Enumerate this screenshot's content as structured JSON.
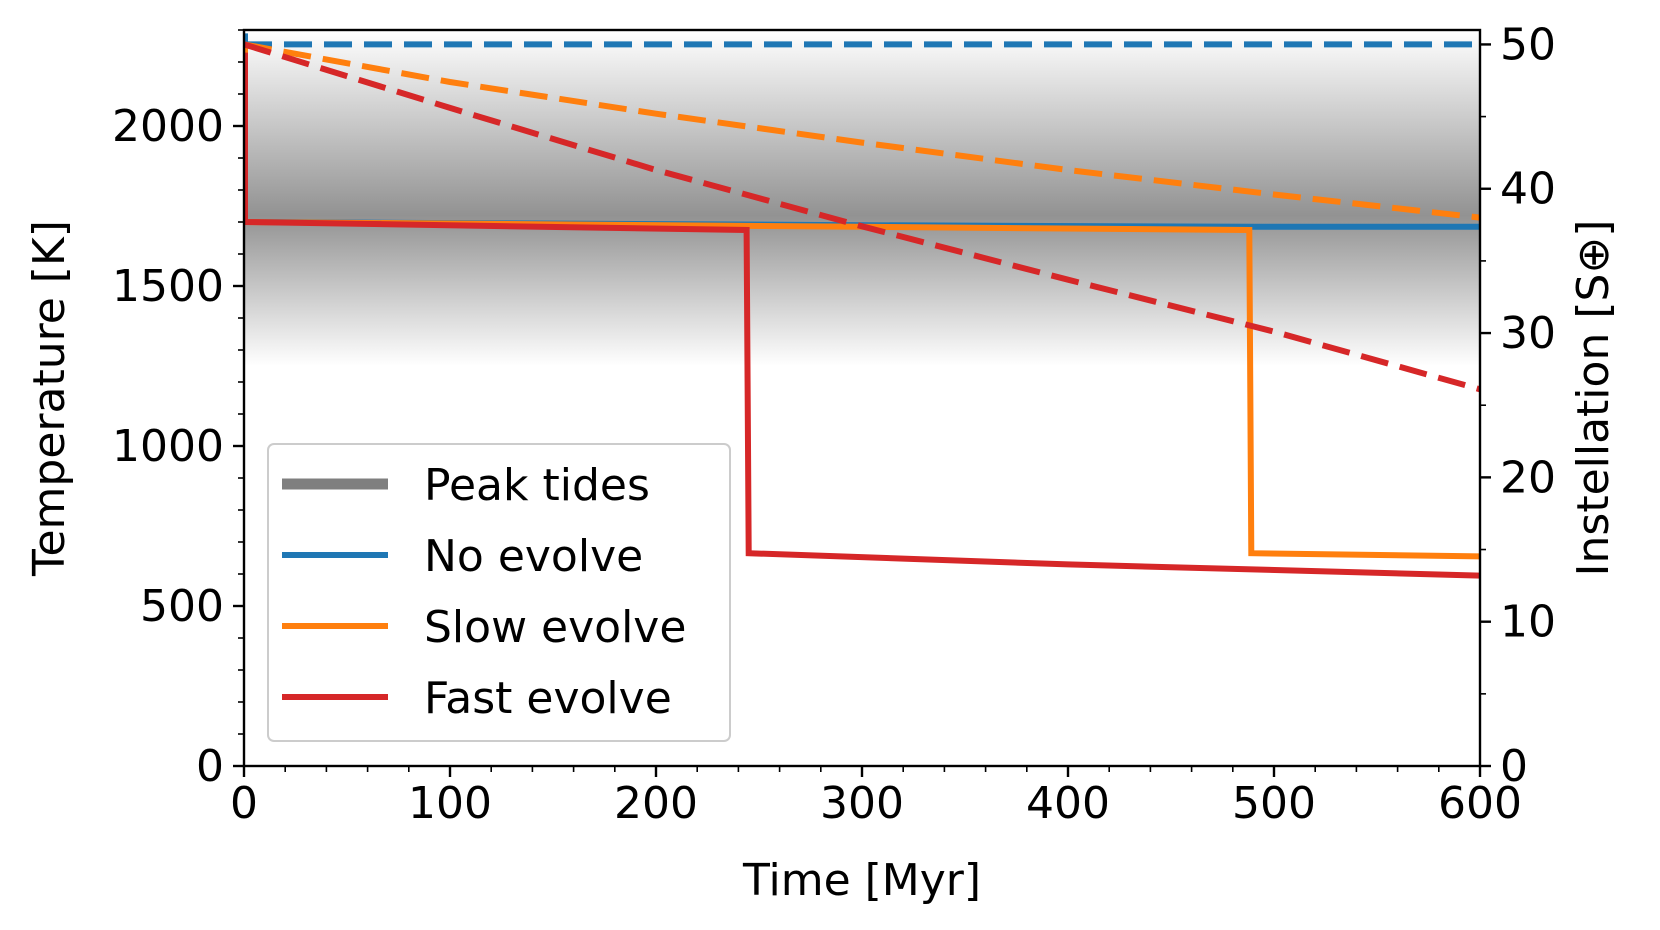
{
  "chart_data": {
    "type": "line",
    "xlabel": "Time [Myr]",
    "ylabel": "Temperature [K]",
    "y2label": "Instellation [S⊕]",
    "xlim": [
      0,
      600
    ],
    "ylim": [
      0,
      2300
    ],
    "y2lim": [
      0,
      51
    ],
    "xticks": [
      0,
      100,
      200,
      300,
      400,
      500,
      600
    ],
    "yticks": [
      0,
      500,
      1000,
      1500,
      2000
    ],
    "y2ticks": [
      0,
      10,
      20,
      30,
      40,
      50
    ],
    "peak_tides_band": {
      "center_K": 1720,
      "upper_K": 2300,
      "lower_K": 1250,
      "color": "#7f7f7f"
    },
    "legend": {
      "placement": "lower-left",
      "entries": [
        {
          "label": "Peak tides",
          "color": "#7f7f7f"
        },
        {
          "label": "No evolve",
          "color": "#1f77b4"
        },
        {
          "label": "Slow evolve",
          "color": "#ff7f0e"
        },
        {
          "label": "Fast evolve",
          "color": "#d62728"
        }
      ]
    },
    "series": [
      {
        "name": "No evolve",
        "axis": "temperature",
        "style": "solid",
        "color": "#1f77b4",
        "x": [
          0,
          0.5,
          0.5,
          300,
          490,
          600
        ],
        "y": [
          2280,
          2280,
          1700,
          1690,
          1685,
          1685
        ]
      },
      {
        "name": "Slow evolve",
        "axis": "temperature",
        "style": "solid",
        "color": "#ff7f0e",
        "x": [
          0,
          0.5,
          0.5,
          300,
          488,
          489,
          600
        ],
        "y": [
          2250,
          2250,
          1700,
          1685,
          1675,
          665,
          655
        ]
      },
      {
        "name": "Fast evolve",
        "axis": "temperature",
        "style": "solid",
        "color": "#d62728",
        "x": [
          0,
          0.5,
          0.5,
          244,
          245,
          400,
          600
        ],
        "y": [
          2220,
          2220,
          1700,
          1675,
          665,
          630,
          595
        ]
      },
      {
        "name": "No evolve instellation",
        "axis": "instellation",
        "style": "dashed",
        "color": "#1f77b4",
        "x": [
          0,
          600
        ],
        "y": [
          50,
          50
        ]
      },
      {
        "name": "Slow evolve instellation",
        "axis": "instellation",
        "style": "dashed",
        "color": "#ff7f0e",
        "x": [
          0,
          100,
          200,
          300,
          400,
          500,
          600
        ],
        "y": [
          50,
          47.4,
          45.2,
          43.2,
          41.3,
          39.6,
          38.0
        ]
      },
      {
        "name": "Fast evolve instellation",
        "axis": "instellation",
        "style": "dashed",
        "color": "#d62728",
        "x": [
          0,
          100,
          200,
          300,
          400,
          500,
          600
        ],
        "y": [
          50,
          45.6,
          41.3,
          37.4,
          33.7,
          30.1,
          26.1
        ]
      }
    ]
  }
}
